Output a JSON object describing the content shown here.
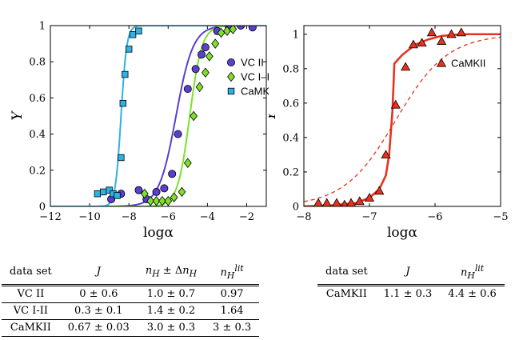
{
  "chart_data": [
    {
      "type": "scatter",
      "xlabel": "logα",
      "ylabel": "Y",
      "xlim": [
        -12,
        -1
      ],
      "ylim": [
        0,
        1
      ],
      "xticks": [
        "−12",
        "−10",
        "−8",
        "−6",
        "−4",
        "−2"
      ],
      "xtick_values": [
        -12,
        -10,
        -8,
        -6,
        -4,
        -2
      ],
      "yticks": [
        "0",
        "0.2",
        "0.4",
        "0.6",
        "0.8",
        "1"
      ],
      "ytick_values": [
        0,
        0.2,
        0.4,
        0.6,
        0.8,
        1
      ],
      "legend": {
        "placement": "right"
      },
      "series": [
        {
          "name": "VC II",
          "marker": "circle",
          "color": "#5a3fd0",
          "fit": {
            "x50": -5.6,
            "n": 1.0
          },
          "x": [
            -8.9,
            -8.4,
            -7.5,
            -7.1,
            -6.6,
            -6.2,
            -5.8,
            -5.5,
            -5.0,
            -4.6,
            -4.3,
            -4.1,
            -3.5,
            -2.9,
            -2.3,
            -1.7
          ],
          "y": [
            0.04,
            0.07,
            0.09,
            0.04,
            0.08,
            0.1,
            0.18,
            0.4,
            0.65,
            0.76,
            0.84,
            0.88,
            0.97,
            0.99,
            1.0,
            0.99
          ]
        },
        {
          "name": "VC I–II",
          "marker": "diamond",
          "color": "#7ee02a",
          "fit": {
            "x50": -4.9,
            "n": 1.4
          },
          "x": [
            -7.2,
            -6.9,
            -6.6,
            -6.3,
            -6.0,
            -5.7,
            -5.3,
            -5.0,
            -4.7,
            -4.4,
            -4.1,
            -3.9,
            -3.6,
            -3.3,
            -3.0,
            -2.7
          ],
          "y": [
            0.07,
            0.03,
            0.03,
            0.03,
            0.03,
            0.05,
            0.08,
            0.24,
            0.5,
            0.66,
            0.74,
            0.83,
            0.9,
            0.96,
            0.97,
            0.98
          ]
        },
        {
          "name": "CaMKII",
          "marker": "square",
          "color": "#2fb1e6",
          "fit": {
            "x50": -8.4,
            "n": 3.0
          },
          "x": [
            -9.6,
            -9.3,
            -9.0,
            -8.8,
            -8.6,
            -8.4,
            -8.3,
            -8.2,
            -8.0,
            -7.8,
            -7.5
          ],
          "y": [
            0.07,
            0.08,
            0.09,
            0.07,
            0.06,
            0.27,
            0.57,
            0.73,
            0.87,
            0.95,
            0.97
          ]
        }
      ]
    },
    {
      "type": "scatter",
      "xlabel": "logα",
      "ylabel": "Y",
      "xlim": [
        -8,
        -5
      ],
      "ylim": [
        0,
        1.05
      ],
      "xticks": [
        "−8",
        "−7",
        "−6",
        "−5"
      ],
      "xtick_values": [
        -8,
        -7,
        -6,
        -5
      ],
      "yticks": [
        "0",
        "0.2",
        "0.4",
        "0.6",
        "0.8",
        "1"
      ],
      "ytick_values": [
        0,
        0.2,
        0.4,
        0.6,
        0.8,
        1
      ],
      "legend": {
        "placement": "right"
      },
      "series": [
        {
          "name": "CaMKII",
          "marker": "triangle",
          "color": "#e8321f",
          "x": [
            -7.78,
            -7.65,
            -7.5,
            -7.38,
            -7.28,
            -7.15,
            -7.0,
            -6.85,
            -6.75,
            -6.6,
            -6.45,
            -6.33,
            -6.2,
            -6.05,
            -5.9,
            -5.75,
            -5.6
          ],
          "y": [
            0.02,
            0.02,
            0.02,
            0.01,
            0.02,
            0.03,
            0.05,
            0.09,
            0.3,
            0.59,
            0.81,
            0.94,
            0.95,
            1.01,
            0.96,
            1.0,
            1.01
          ],
          "fit_solid": {
            "x": [
              -8,
              -7.6,
              -7.2,
              -7.0,
              -6.85,
              -6.75,
              -6.7,
              -6.65,
              -6.62,
              -6.5,
              -6.3,
              -6.1,
              -5.9,
              -5.6,
              -5.3,
              -5.0
            ],
            "y": [
              0.0,
              0.005,
              0.02,
              0.05,
              0.1,
              0.18,
              0.3,
              0.55,
              0.83,
              0.88,
              0.94,
              0.97,
              0.99,
              1.0,
              1.0,
              1.0
            ]
          },
          "fit_dashed": {
            "x50": -6.6,
            "n": 1.1
          }
        }
      ]
    }
  ],
  "table1": {
    "headers": [
      "data set",
      "J",
      "nH ± ΔnH",
      "nHlit"
    ],
    "rows": [
      [
        "VC II",
        "0 ± 0.6",
        "1.0 ± 0.7",
        "0.97"
      ],
      [
        "VC I-II",
        "0.3 ± 0.1",
        "1.4 ± 0.2",
        "1.64"
      ],
      [
        "CaMKII",
        "0.67 ± 0.03",
        "3.0 ± 0.3",
        "3 ± 0.3"
      ]
    ]
  },
  "table2": {
    "headers": [
      "data set",
      "J",
      "nHlit"
    ],
    "rows": [
      [
        "CaMKII",
        "1.1 ± 0.3",
        "4.4 ± 0.6"
      ]
    ]
  }
}
